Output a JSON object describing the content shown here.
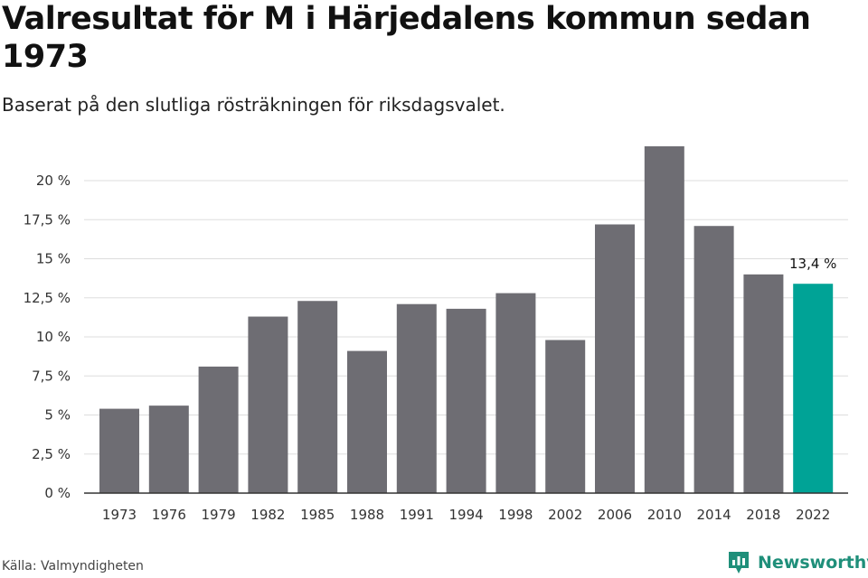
{
  "header": {
    "title": "Valresultat för M i Härjedalens kommun sedan 1973",
    "subtitle": "Baserat på den slutliga rösträkningen för riksdagsvalet."
  },
  "footer": {
    "source": "Källa: Valmyndigheten",
    "brand": "Newsworthy",
    "brand_icon": "newsworthy-logo-icon"
  },
  "colors": {
    "bar": "#6e6d73",
    "highlight": "#00a396",
    "grid": "#dddddd",
    "axis": "#333333",
    "brand": "#1f8f7a"
  },
  "chart_data": {
    "type": "bar",
    "categories": [
      "1973",
      "1976",
      "1979",
      "1982",
      "1985",
      "1988",
      "1991",
      "1994",
      "1998",
      "2002",
      "2006",
      "2010",
      "2014",
      "2018",
      "2022"
    ],
    "values": [
      5.4,
      5.6,
      8.1,
      11.3,
      12.3,
      9.1,
      12.1,
      11.8,
      12.8,
      9.8,
      17.2,
      22.2,
      17.1,
      14.0,
      13.4
    ],
    "highlight_index": 14,
    "highlight_label": "13,4 %",
    "yticks": [
      "0 %",
      "2,5 %",
      "5 %",
      "7,5 %",
      "10 %",
      "12,5 %",
      "15 %",
      "17,5 %",
      "20 %"
    ],
    "ytick_values": [
      0,
      2.5,
      5,
      7.5,
      10,
      12.5,
      15,
      17.5,
      20
    ],
    "ylim": [
      0,
      22.2
    ],
    "grid": true
  }
}
